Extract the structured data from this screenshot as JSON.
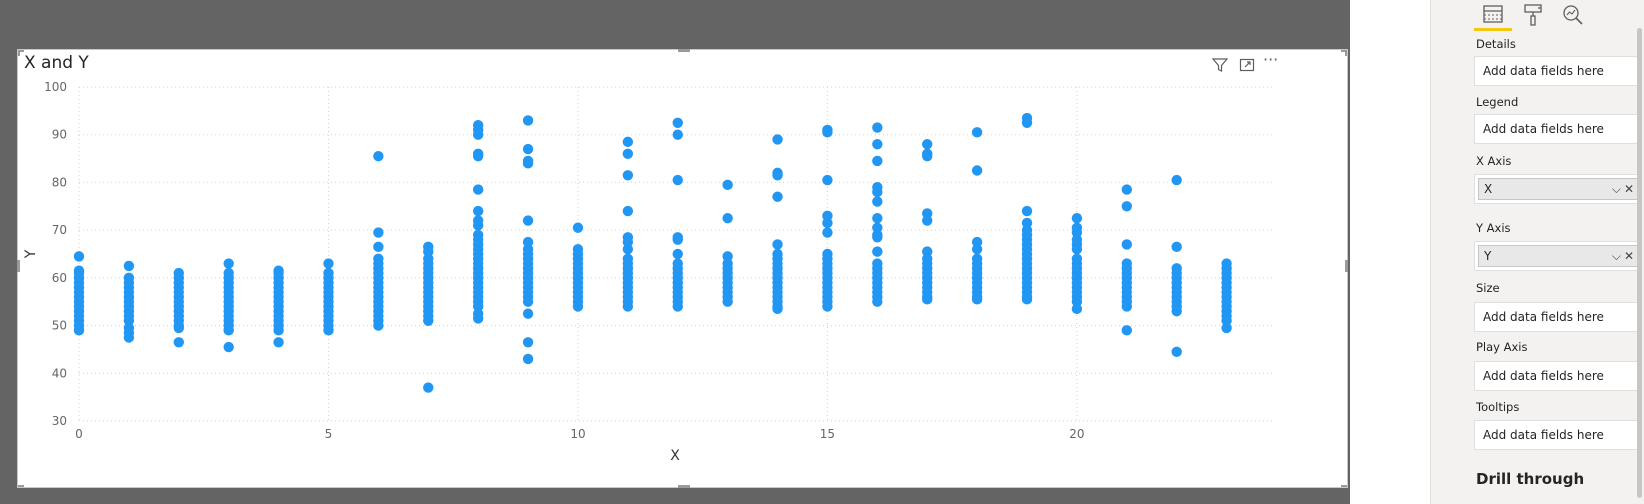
{
  "visual": {
    "title": "X and Y",
    "header_icons": [
      "filter-icon",
      "focus-mode-icon",
      "more-options-icon"
    ],
    "more_label": "···"
  },
  "chart_data": {
    "type": "scatter",
    "title": "X and Y",
    "xlabel": "X",
    "ylabel": "Y",
    "xlim": [
      0,
      24
    ],
    "ylim": [
      30,
      100
    ],
    "x_ticks": [
      "0",
      "5",
      "10",
      "15",
      "20"
    ],
    "y_ticks": [
      "30",
      "40",
      "50",
      "60",
      "70",
      "80",
      "90",
      "100"
    ],
    "grid": true,
    "point_color": "#2196F3",
    "points": [
      [
        0,
        64.5
      ],
      [
        0,
        61.5
      ],
      [
        0,
        61
      ],
      [
        0,
        60
      ],
      [
        0,
        59
      ],
      [
        0,
        58
      ],
      [
        0,
        57
      ],
      [
        0,
        56
      ],
      [
        0,
        55
      ],
      [
        0,
        54
      ],
      [
        0,
        53
      ],
      [
        0,
        52
      ],
      [
        0,
        51
      ],
      [
        0,
        50
      ],
      [
        0,
        49
      ],
      [
        1,
        62.5
      ],
      [
        1,
        60
      ],
      [
        1,
        59
      ],
      [
        1,
        58
      ],
      [
        1,
        57
      ],
      [
        1,
        56
      ],
      [
        1,
        55
      ],
      [
        1,
        54
      ],
      [
        1,
        53
      ],
      [
        1,
        52
      ],
      [
        1,
        51
      ],
      [
        1,
        49.5
      ],
      [
        1,
        48.5
      ],
      [
        1,
        47.5
      ],
      [
        2,
        61
      ],
      [
        2,
        60
      ],
      [
        2,
        59
      ],
      [
        2,
        58
      ],
      [
        2,
        57
      ],
      [
        2,
        56
      ],
      [
        2,
        55
      ],
      [
        2,
        54
      ],
      [
        2,
        53
      ],
      [
        2,
        52
      ],
      [
        2,
        51
      ],
      [
        2,
        50
      ],
      [
        2,
        49.5
      ],
      [
        2,
        46.5
      ],
      [
        3,
        63
      ],
      [
        3,
        61
      ],
      [
        3,
        60
      ],
      [
        3,
        59
      ],
      [
        3,
        58
      ],
      [
        3,
        57
      ],
      [
        3,
        56
      ],
      [
        3,
        55
      ],
      [
        3,
        54
      ],
      [
        3,
        53
      ],
      [
        3,
        52
      ],
      [
        3,
        51
      ],
      [
        3,
        50
      ],
      [
        3,
        49
      ],
      [
        3,
        45.5
      ],
      [
        4,
        61.5
      ],
      [
        4,
        61
      ],
      [
        4,
        60
      ],
      [
        4,
        59
      ],
      [
        4,
        58
      ],
      [
        4,
        57
      ],
      [
        4,
        56
      ],
      [
        4,
        55
      ],
      [
        4,
        54
      ],
      [
        4,
        53
      ],
      [
        4,
        52
      ],
      [
        4,
        51
      ],
      [
        4,
        50
      ],
      [
        4,
        49
      ],
      [
        4,
        46.5
      ],
      [
        5,
        63
      ],
      [
        5,
        61
      ],
      [
        5,
        60
      ],
      [
        5,
        59
      ],
      [
        5,
        58
      ],
      [
        5,
        57
      ],
      [
        5,
        56
      ],
      [
        5,
        55
      ],
      [
        5,
        54
      ],
      [
        5,
        53
      ],
      [
        5,
        52
      ],
      [
        5,
        51
      ],
      [
        5,
        50
      ],
      [
        5,
        49
      ],
      [
        6,
        85.5
      ],
      [
        6,
        69.5
      ],
      [
        6,
        66.5
      ],
      [
        6,
        64
      ],
      [
        6,
        63
      ],
      [
        6,
        62
      ],
      [
        6,
        61
      ],
      [
        6,
        60
      ],
      [
        6,
        59
      ],
      [
        6,
        58
      ],
      [
        6,
        57
      ],
      [
        6,
        56
      ],
      [
        6,
        55
      ],
      [
        6,
        54
      ],
      [
        6,
        53
      ],
      [
        6,
        52
      ],
      [
        6,
        51
      ],
      [
        6,
        50
      ],
      [
        7,
        66.5
      ],
      [
        7,
        65.5
      ],
      [
        7,
        64
      ],
      [
        7,
        63
      ],
      [
        7,
        62
      ],
      [
        7,
        61
      ],
      [
        7,
        60
      ],
      [
        7,
        59
      ],
      [
        7,
        58
      ],
      [
        7,
        57
      ],
      [
        7,
        56
      ],
      [
        7,
        55
      ],
      [
        7,
        54
      ],
      [
        7,
        53
      ],
      [
        7,
        52
      ],
      [
        7,
        51
      ],
      [
        7,
        37
      ],
      [
        8,
        92
      ],
      [
        8,
        91
      ],
      [
        8,
        90
      ],
      [
        8,
        86
      ],
      [
        8,
        85.5
      ],
      [
        8,
        78.5
      ],
      [
        8,
        74
      ],
      [
        8,
        72
      ],
      [
        8,
        71
      ],
      [
        8,
        69
      ],
      [
        8,
        68
      ],
      [
        8,
        67
      ],
      [
        8,
        66
      ],
      [
        8,
        65
      ],
      [
        8,
        64
      ],
      [
        8,
        63
      ],
      [
        8,
        62
      ],
      [
        8,
        61
      ],
      [
        8,
        60
      ],
      [
        8,
        59
      ],
      [
        8,
        58
      ],
      [
        8,
        57
      ],
      [
        8,
        56
      ],
      [
        8,
        55
      ],
      [
        8,
        54
      ],
      [
        8,
        52.5
      ],
      [
        8,
        51.5
      ],
      [
        9,
        93
      ],
      [
        9,
        87
      ],
      [
        9,
        84.5
      ],
      [
        9,
        84
      ],
      [
        9,
        72
      ],
      [
        9,
        67.5
      ],
      [
        9,
        66
      ],
      [
        9,
        65
      ],
      [
        9,
        64
      ],
      [
        9,
        63
      ],
      [
        9,
        62
      ],
      [
        9,
        61
      ],
      [
        9,
        60
      ],
      [
        9,
        59
      ],
      [
        9,
        58
      ],
      [
        9,
        57
      ],
      [
        9,
        56
      ],
      [
        9,
        55
      ],
      [
        9,
        52.5
      ],
      [
        9,
        46.5
      ],
      [
        9,
        43
      ],
      [
        10,
        70.5
      ],
      [
        10,
        66
      ],
      [
        10,
        65
      ],
      [
        10,
        64
      ],
      [
        10,
        63
      ],
      [
        10,
        62
      ],
      [
        10,
        61
      ],
      [
        10,
        60
      ],
      [
        10,
        59
      ],
      [
        10,
        58
      ],
      [
        10,
        57
      ],
      [
        10,
        56
      ],
      [
        10,
        55
      ],
      [
        10,
        54
      ],
      [
        11,
        88.5
      ],
      [
        11,
        86
      ],
      [
        11,
        81.5
      ],
      [
        11,
        74
      ],
      [
        11,
        68.5
      ],
      [
        11,
        67.5
      ],
      [
        11,
        66
      ],
      [
        11,
        64
      ],
      [
        11,
        63
      ],
      [
        11,
        62
      ],
      [
        11,
        61
      ],
      [
        11,
        60
      ],
      [
        11,
        59
      ],
      [
        11,
        58
      ],
      [
        11,
        57
      ],
      [
        11,
        56
      ],
      [
        11,
        55
      ],
      [
        11,
        54
      ],
      [
        12,
        92.5
      ],
      [
        12,
        90
      ],
      [
        12,
        80.5
      ],
      [
        12,
        68.5
      ],
      [
        12,
        68
      ],
      [
        12,
        65
      ],
      [
        12,
        63
      ],
      [
        12,
        62
      ],
      [
        12,
        61
      ],
      [
        12,
        60
      ],
      [
        12,
        59
      ],
      [
        12,
        58
      ],
      [
        12,
        57
      ],
      [
        12,
        56
      ],
      [
        12,
        55
      ],
      [
        12,
        54
      ],
      [
        13,
        79.5
      ],
      [
        13,
        72.5
      ],
      [
        13,
        64.5
      ],
      [
        13,
        63
      ],
      [
        13,
        62
      ],
      [
        13,
        61
      ],
      [
        13,
        60
      ],
      [
        13,
        59
      ],
      [
        13,
        58
      ],
      [
        13,
        57
      ],
      [
        13,
        56
      ],
      [
        13,
        55
      ],
      [
        14,
        89
      ],
      [
        14,
        82
      ],
      [
        14,
        81.5
      ],
      [
        14,
        77
      ],
      [
        14,
        67
      ],
      [
        14,
        65
      ],
      [
        14,
        64
      ],
      [
        14,
        63
      ],
      [
        14,
        62
      ],
      [
        14,
        61
      ],
      [
        14,
        60
      ],
      [
        14,
        59
      ],
      [
        14,
        58
      ],
      [
        14,
        57
      ],
      [
        14,
        56
      ],
      [
        14,
        55
      ],
      [
        14,
        54
      ],
      [
        14,
        53.5
      ],
      [
        15,
        91
      ],
      [
        15,
        90.5
      ],
      [
        15,
        80.5
      ],
      [
        15,
        73
      ],
      [
        15,
        71.5
      ],
      [
        15,
        69.5
      ],
      [
        15,
        65
      ],
      [
        15,
        64
      ],
      [
        15,
        63
      ],
      [
        15,
        62
      ],
      [
        15,
        61
      ],
      [
        15,
        60
      ],
      [
        15,
        59
      ],
      [
        15,
        58
      ],
      [
        15,
        57
      ],
      [
        15,
        56
      ],
      [
        15,
        55
      ],
      [
        15,
        54
      ],
      [
        16,
        91.5
      ],
      [
        16,
        88
      ],
      [
        16,
        84.5
      ],
      [
        16,
        79
      ],
      [
        16,
        78
      ],
      [
        16,
        76
      ],
      [
        16,
        72.5
      ],
      [
        16,
        70.5
      ],
      [
        16,
        69
      ],
      [
        16,
        68.5
      ],
      [
        16,
        65.5
      ],
      [
        16,
        63
      ],
      [
        16,
        62
      ],
      [
        16,
        61
      ],
      [
        16,
        60
      ],
      [
        16,
        59
      ],
      [
        16,
        58
      ],
      [
        16,
        57
      ],
      [
        16,
        56
      ],
      [
        16,
        55
      ],
      [
        17,
        88
      ],
      [
        17,
        86
      ],
      [
        17,
        85.5
      ],
      [
        17,
        73.5
      ],
      [
        17,
        72
      ],
      [
        17,
        65.5
      ],
      [
        17,
        64
      ],
      [
        17,
        63
      ],
      [
        17,
        62
      ],
      [
        17,
        61
      ],
      [
        17,
        60
      ],
      [
        17,
        59
      ],
      [
        17,
        58
      ],
      [
        17,
        57
      ],
      [
        17,
        56
      ],
      [
        17,
        55.5
      ],
      [
        18,
        90.5
      ],
      [
        18,
        82.5
      ],
      [
        18,
        67.5
      ],
      [
        18,
        66
      ],
      [
        18,
        64
      ],
      [
        18,
        63
      ],
      [
        18,
        62
      ],
      [
        18,
        61
      ],
      [
        18,
        60
      ],
      [
        18,
        59
      ],
      [
        18,
        58
      ],
      [
        18,
        57
      ],
      [
        18,
        56
      ],
      [
        18,
        55.5
      ],
      [
        19,
        93.5
      ],
      [
        19,
        92.5
      ],
      [
        19,
        74
      ],
      [
        19,
        71.5
      ],
      [
        19,
        70
      ],
      [
        19,
        69
      ],
      [
        19,
        68
      ],
      [
        19,
        67
      ],
      [
        19,
        66
      ],
      [
        19,
        65
      ],
      [
        19,
        64
      ],
      [
        19,
        63
      ],
      [
        19,
        62
      ],
      [
        19,
        61
      ],
      [
        19,
        60
      ],
      [
        19,
        59
      ],
      [
        19,
        58
      ],
      [
        19,
        57
      ],
      [
        19,
        56
      ],
      [
        19,
        55.5
      ],
      [
        20,
        72.5
      ],
      [
        20,
        70.5
      ],
      [
        20,
        69.5
      ],
      [
        20,
        68
      ],
      [
        20,
        67
      ],
      [
        20,
        66
      ],
      [
        20,
        64
      ],
      [
        20,
        63
      ],
      [
        20,
        62
      ],
      [
        20,
        61
      ],
      [
        20,
        60
      ],
      [
        20,
        59
      ],
      [
        20,
        58
      ],
      [
        20,
        57
      ],
      [
        20,
        56
      ],
      [
        20,
        55
      ],
      [
        20,
        53.5
      ],
      [
        21,
        78.5
      ],
      [
        21,
        75
      ],
      [
        21,
        67
      ],
      [
        21,
        63
      ],
      [
        21,
        62
      ],
      [
        21,
        61
      ],
      [
        21,
        60
      ],
      [
        21,
        59
      ],
      [
        21,
        58
      ],
      [
        21,
        57
      ],
      [
        21,
        56
      ],
      [
        21,
        55
      ],
      [
        21,
        54
      ],
      [
        21,
        49
      ],
      [
        22,
        80.5
      ],
      [
        22,
        66.5
      ],
      [
        22,
        62
      ],
      [
        22,
        61
      ],
      [
        22,
        60
      ],
      [
        22,
        59
      ],
      [
        22,
        58
      ],
      [
        22,
        57
      ],
      [
        22,
        56
      ],
      [
        22,
        55
      ],
      [
        22,
        54
      ],
      [
        22,
        53
      ],
      [
        22,
        44.5
      ],
      [
        23,
        63
      ],
      [
        23,
        62
      ],
      [
        23,
        61
      ],
      [
        23,
        60
      ],
      [
        23,
        59
      ],
      [
        23,
        58
      ],
      [
        23,
        57
      ],
      [
        23,
        56
      ],
      [
        23,
        55
      ],
      [
        23,
        54
      ],
      [
        23,
        53
      ],
      [
        23,
        52
      ],
      [
        23,
        51
      ],
      [
        23,
        49.5
      ]
    ]
  },
  "fields_pane": {
    "tabs": [
      "fields-tab-icon",
      "format-tab-icon",
      "analytics-tab-icon"
    ],
    "wells": [
      {
        "label": "Details",
        "placeholder": "Add data fields here"
      },
      {
        "label": "Legend",
        "placeholder": "Add data fields here"
      },
      {
        "label": "X Axis",
        "field": "X"
      },
      {
        "label": "Y Axis",
        "field": "Y"
      },
      {
        "label": "Size",
        "placeholder": "Add data fields here"
      },
      {
        "label": "Play Axis",
        "placeholder": "Add data fields here"
      },
      {
        "label": "Tooltips",
        "placeholder": "Add data fields here"
      }
    ],
    "drill_through": "Drill through",
    "chevron": "⌵",
    "close": "✕"
  }
}
